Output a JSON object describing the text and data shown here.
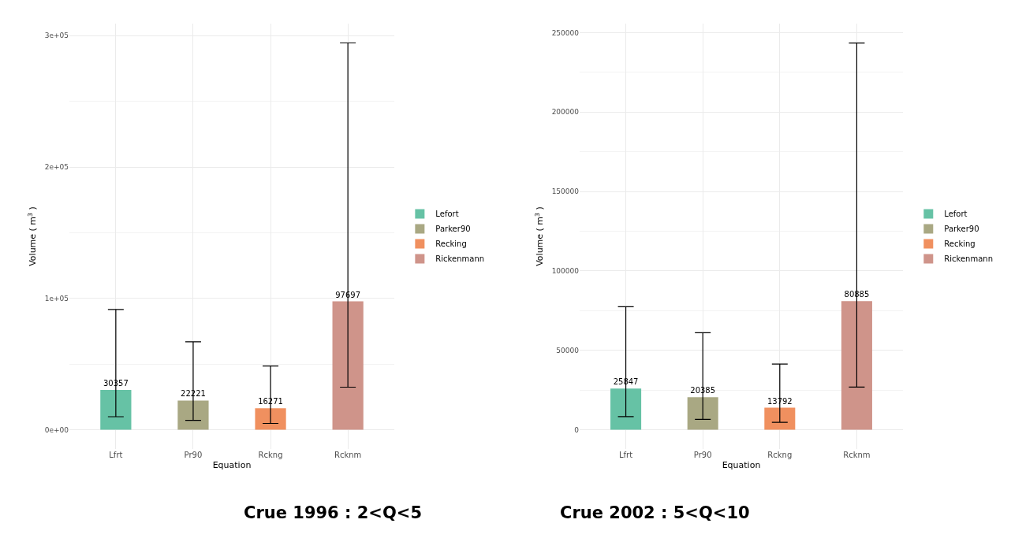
{
  "chart_data": [
    {
      "type": "bar",
      "title": "Crue 1996 : 2<Q<5",
      "xlabel": "Equation",
      "ylabel": "Volume ( m$^{3}$ )",
      "categories": [
        "Lfrt",
        "Pr90",
        "Rckng",
        "Rcknm"
      ],
      "series": [
        {
          "name": "Lefort",
          "color": "#66c2a5",
          "values": [
            30357,
            null,
            null,
            null
          ],
          "errors": [
            [
              9900,
              91500
            ],
            null,
            null,
            null
          ]
        },
        {
          "name": "Parker90",
          "color": "#a9a883",
          "values": [
            null,
            22221,
            null,
            null
          ],
          "errors": [
            null,
            [
              7100,
              66900
            ],
            null,
            null
          ]
        },
        {
          "name": "Recking",
          "color": "#f0905f",
          "values": [
            null,
            null,
            16271,
            null
          ],
          "errors": [
            null,
            null,
            [
              4800,
              48500
            ],
            null
          ]
        },
        {
          "name": "Rickenmann",
          "color": "#cf948a",
          "values": [
            null,
            null,
            null,
            97697
          ],
          "errors": [
            null,
            null,
            null,
            [
              32400,
              294500
            ]
          ]
        }
      ],
      "ylim": [
        -14700,
        309200
      ],
      "yticks": [
        {
          "value": 0,
          "label": "0e+00"
        },
        {
          "value": 100000,
          "label": "1e+05"
        },
        {
          "value": 200000,
          "label": "2e+05"
        },
        {
          "value": 300000,
          "label": "3e+05"
        }
      ],
      "data_labels": true,
      "grid": true,
      "legend": "right"
    },
    {
      "type": "bar",
      "title": "Crue 2002 : 5<Q<10",
      "xlabel": "Equation",
      "ylabel": "Volume ( m$^{3}$ )",
      "categories": [
        "Lfrt",
        "Pr90",
        "Rckng",
        "Rcknm"
      ],
      "series": [
        {
          "name": "Lefort",
          "color": "#66c2a5",
          "values": [
            25847,
            null,
            null,
            null
          ],
          "errors": [
            [
              8200,
              77400
            ],
            null,
            null,
            null
          ]
        },
        {
          "name": "Parker90",
          "color": "#a9a883",
          "values": [
            null,
            20385,
            null,
            null
          ],
          "errors": [
            null,
            [
              6500,
              61000
            ],
            null,
            null
          ]
        },
        {
          "name": "Recking",
          "color": "#f0905f",
          "values": [
            null,
            null,
            13792,
            null
          ],
          "errors": [
            null,
            null,
            [
              4600,
              41300
            ],
            null
          ]
        },
        {
          "name": "Rickenmann",
          "color": "#cf948a",
          "values": [
            null,
            null,
            null,
            80885
          ],
          "errors": [
            null,
            null,
            null,
            [
              26800,
              243500
            ]
          ]
        }
      ],
      "ylim": [
        -12200,
        255700
      ],
      "yticks": [
        0,
        50000,
        100000,
        150000,
        200000,
        250000
      ],
      "data_labels": true,
      "grid": true,
      "legend": "right"
    }
  ]
}
